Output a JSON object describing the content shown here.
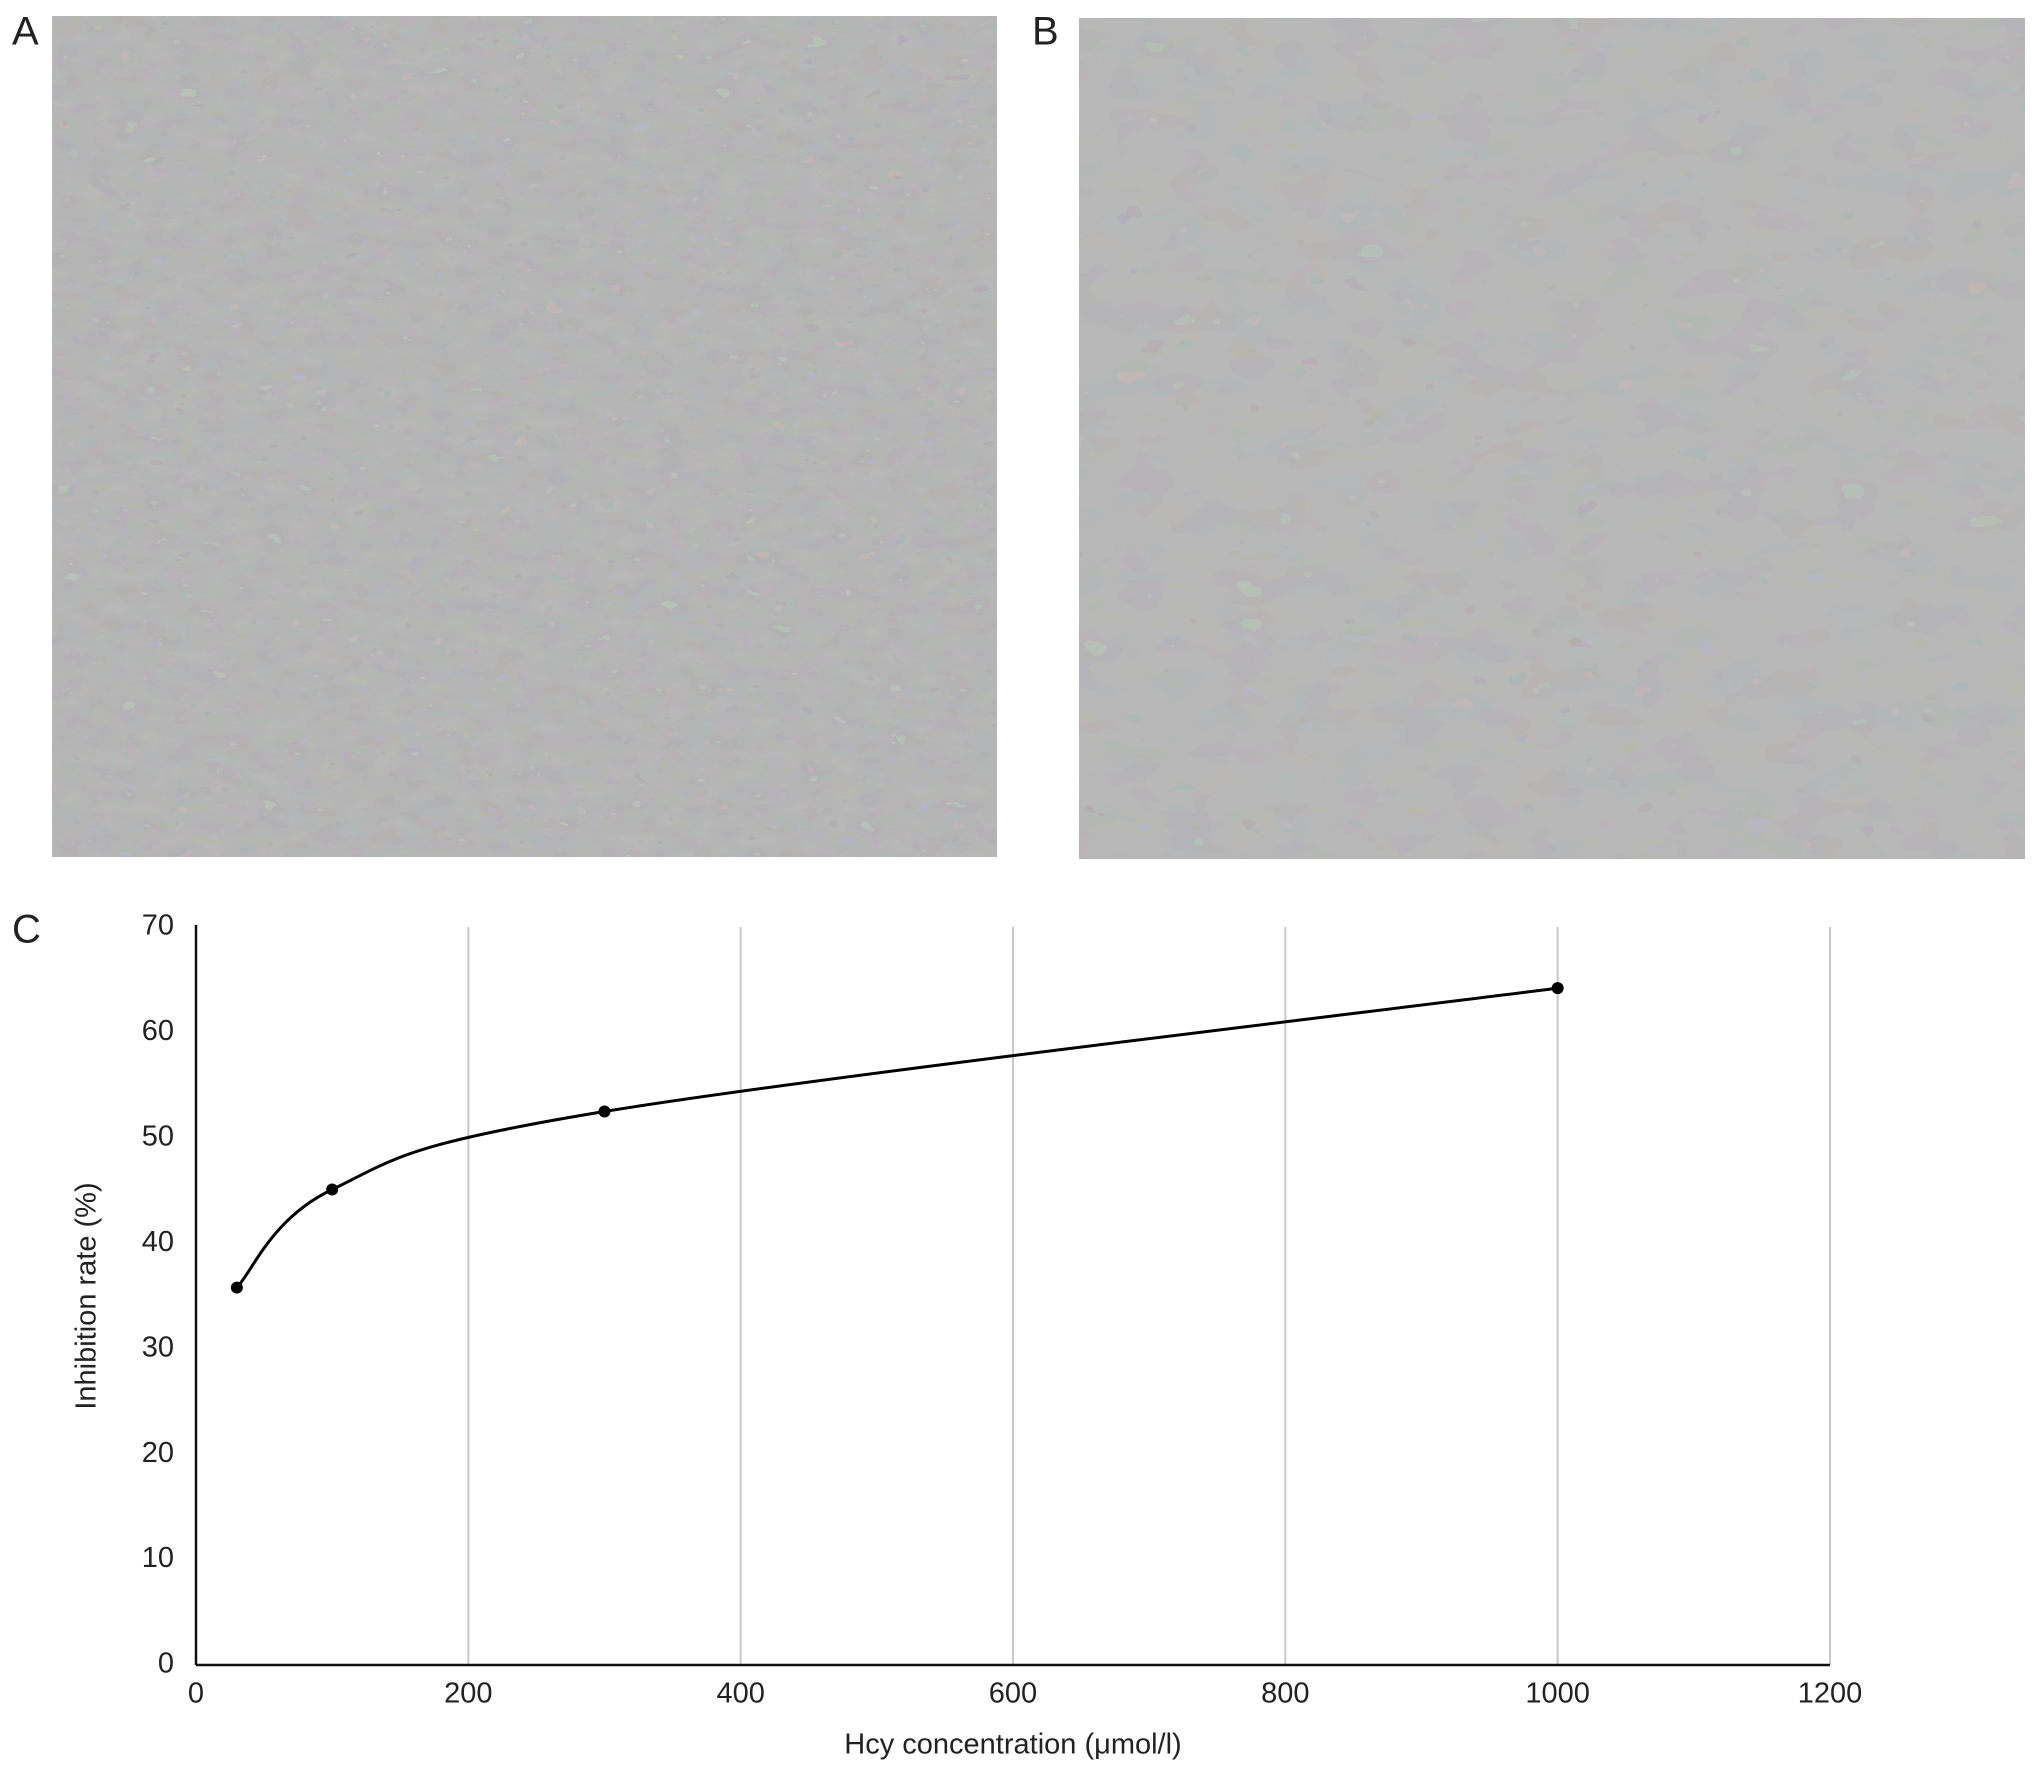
{
  "panel_labels": [
    "A",
    "B",
    "C"
  ],
  "chart_data": {
    "type": "line",
    "x_label": "Hcy concentration (μmol/l)",
    "y_label": "Inhibition rate (%)",
    "x": [
      30,
      100,
      300,
      1000
    ],
    "series": [
      {
        "color": "#000000",
        "values": [
          35.8,
          45.1,
          52.5,
          64.2
        ]
      }
    ],
    "xlim": [
      0,
      1200
    ],
    "xticks": [
      0,
      200,
      400,
      600,
      800,
      1000,
      1200
    ],
    "ylim": [
      0,
      70
    ],
    "yticks": [
      0,
      10,
      20,
      30,
      40,
      50,
      60,
      70
    ],
    "grid": "x",
    "smooth": true
  }
}
